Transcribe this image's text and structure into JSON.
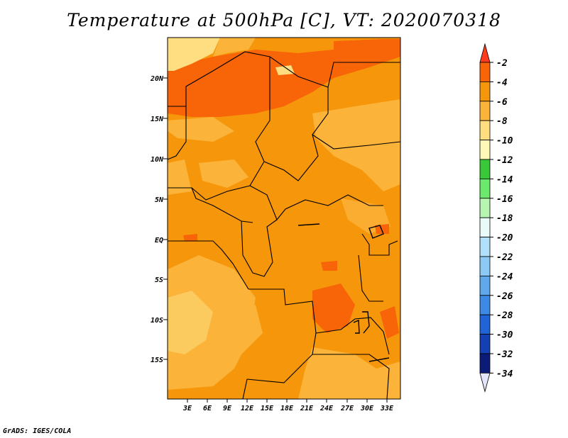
{
  "title": "Temperature at 500hPa [C], VT: 2020070318",
  "credit": "GrADS: IGES/COLA",
  "map": {
    "lat_labels": [
      "20N",
      "15N",
      "10N",
      "5N",
      "EQ",
      "5S",
      "10S",
      "15S"
    ],
    "lon_labels": [
      "3E",
      "6E",
      "9E",
      "12E",
      "15E",
      "18E",
      "21E",
      "24E",
      "27E",
      "30E",
      "33E"
    ]
  },
  "colorbar": {
    "labels": [
      "-2",
      "-4",
      "-6",
      "-8",
      "-10",
      "-12",
      "-14",
      "-16",
      "-18",
      "-20",
      "-22",
      "-24",
      "-26",
      "-28",
      "-30",
      "-32",
      "-34"
    ],
    "colors": [
      "#ff3a1e",
      "#f86408",
      "#f6960a",
      "#fbb33a",
      "#fede80",
      "#fff8b8",
      "#38c838",
      "#6ce86c",
      "#b6f6b0",
      "#e8fbf8",
      "#b0e0fa",
      "#8ec8f4",
      "#60a8ec",
      "#3c8ae4",
      "#2064d8",
      "#1440b4",
      "#0c1a78",
      "#e4e4fa"
    ]
  }
}
